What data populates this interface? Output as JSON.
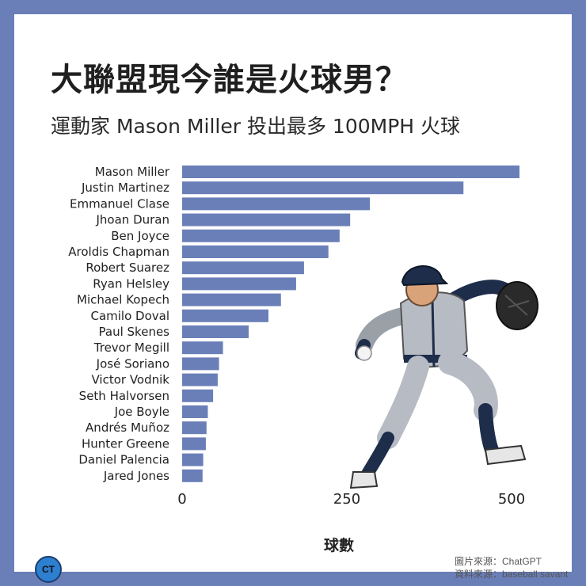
{
  "title": "大聯盟現今誰是火球男？",
  "subtitle": "運動家 Mason Miller 投出最多 100MPH 火球",
  "logo_text": "CT",
  "sources": {
    "image_source": "圖片來源：ChatGPT",
    "data_source": "資料來源：baseball savant"
  },
  "colors": {
    "bar": "#6a7fb8",
    "frame": "#6a7fb8",
    "text": "#222222"
  },
  "chart_data": {
    "type": "bar",
    "orientation": "horizontal",
    "title": "大聯盟現今誰是火球男？",
    "subtitle": "運動家 Mason Miller 投出最多 100MPH 火球",
    "xlabel": "球數",
    "ylabel": "",
    "xlim": [
      0,
      500
    ],
    "xticks": [
      0,
      250,
      500
    ],
    "grid": false,
    "categories": [
      "Mason Miller",
      "Justin Martinez",
      "Emmanuel Clase",
      "Jhoan Duran",
      "Ben Joyce",
      "Aroldis Chapman",
      "Robert Suarez",
      "Ryan Helsley",
      "Michael Kopech",
      "Camilo Doval",
      "Paul Skenes",
      "Trevor Megill",
      "José Soriano",
      "Victor Vodnik",
      "Seth Halvorsen",
      "Joe Boyle",
      "Andrés Muñoz",
      "Hunter Greene",
      "Daniel Palencia",
      "Jared Jones"
    ],
    "values": [
      512,
      427,
      285,
      255,
      239,
      222,
      185,
      173,
      150,
      131,
      101,
      62,
      56,
      54,
      47,
      39,
      37,
      36,
      32,
      31
    ]
  }
}
